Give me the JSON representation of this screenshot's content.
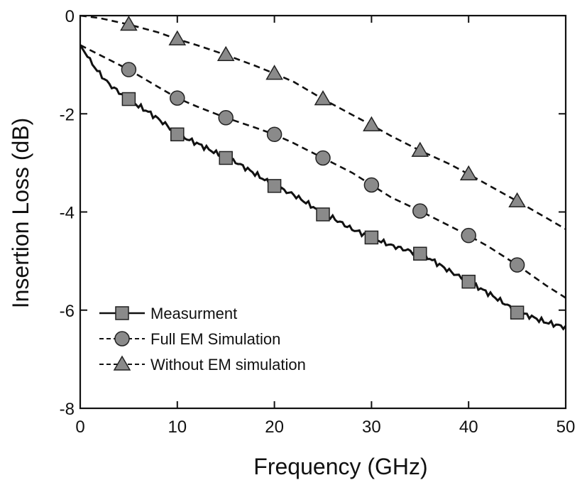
{
  "chart_data": {
    "type": "line",
    "title": "",
    "xlabel": "Frequency (GHz)",
    "ylabel": "Insertion Loss (dB)",
    "xlim": [
      0,
      50
    ],
    "ylim": [
      -8,
      0
    ],
    "xticks": [
      0,
      10,
      20,
      30,
      40,
      50
    ],
    "yticks": [
      -8,
      -6,
      -4,
      -2,
      0
    ],
    "xtick_labels": [
      "0",
      "10",
      "20",
      "30",
      "40",
      "50"
    ],
    "ytick_labels": [
      "-8",
      "-6",
      "-4",
      "-2",
      "0"
    ],
    "grid": false,
    "legend_position": "bottom-left",
    "series": [
      {
        "name": "Measurment",
        "line": "solid",
        "marker": "square",
        "marker_x": [
          5,
          10,
          15,
          20,
          25,
          30,
          35,
          40,
          45
        ],
        "x": [
          0,
          1,
          2,
          3,
          4,
          5,
          6,
          7,
          8,
          9,
          10,
          12,
          14,
          15,
          16,
          18,
          20,
          22,
          24,
          25,
          26,
          28,
          30,
          32,
          34,
          35,
          36,
          38,
          40,
          42,
          44,
          45,
          46,
          48,
          50
        ],
        "y": [
          -0.6,
          -0.92,
          -1.18,
          -1.4,
          -1.56,
          -1.7,
          -1.84,
          -1.96,
          -2.1,
          -2.25,
          -2.42,
          -2.6,
          -2.8,
          -2.9,
          -2.98,
          -3.22,
          -3.47,
          -3.65,
          -3.9,
          -4.05,
          -4.12,
          -4.35,
          -4.52,
          -4.68,
          -4.8,
          -4.85,
          -4.95,
          -5.2,
          -5.42,
          -5.65,
          -5.9,
          -6.05,
          -6.1,
          -6.25,
          -6.35
        ]
      },
      {
        "name": "Full EM Simulation",
        "line": "dashed",
        "marker": "circle",
        "marker_x": [
          5,
          10,
          15,
          20,
          25,
          30,
          35,
          40,
          45
        ],
        "x": [
          0,
          2,
          5,
          8,
          10,
          12,
          15,
          18,
          20,
          22,
          25,
          28,
          30,
          32,
          35,
          38,
          40,
          42,
          45,
          48,
          50
        ],
        "y": [
          -0.6,
          -0.8,
          -1.1,
          -1.45,
          -1.68,
          -1.85,
          -2.08,
          -2.28,
          -2.42,
          -2.6,
          -2.9,
          -3.2,
          -3.45,
          -3.7,
          -3.98,
          -4.28,
          -4.48,
          -4.7,
          -5.08,
          -5.5,
          -5.75
        ]
      },
      {
        "name": "Without EM simulation",
        "line": "dashed",
        "marker": "triangle",
        "marker_x": [
          5,
          10,
          15,
          20,
          25,
          30,
          35,
          40,
          45
        ],
        "x": [
          0,
          2,
          5,
          8,
          10,
          12,
          15,
          18,
          20,
          22,
          25,
          28,
          30,
          32,
          35,
          38,
          40,
          42,
          45,
          48,
          50
        ],
        "y": [
          0,
          -0.05,
          -0.18,
          -0.34,
          -0.48,
          -0.6,
          -0.8,
          -1.02,
          -1.18,
          -1.35,
          -1.7,
          -2.02,
          -2.23,
          -2.45,
          -2.75,
          -3.02,
          -3.23,
          -3.45,
          -3.78,
          -4.12,
          -4.35
        ]
      }
    ]
  }
}
